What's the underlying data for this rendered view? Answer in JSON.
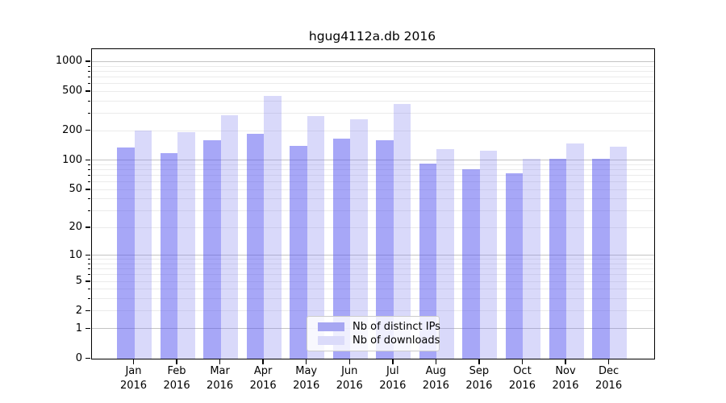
{
  "title": "hgug4112a.db 2016",
  "legend": {
    "items": [
      {
        "label": "Nb of distinct IPs",
        "color": "#a6a6f2"
      },
      {
        "label": "Nb of downloads",
        "color": "#dbdbfa"
      }
    ]
  },
  "chart_data": {
    "type": "bar",
    "title": "hgug4112a.db 2016",
    "scale": "log1p",
    "grid": true,
    "legend_position": "lower center",
    "categories": [
      "Jan",
      "Feb",
      "Mar",
      "Apr",
      "May",
      "Jun",
      "Jul",
      "Aug",
      "Sep",
      "Oct",
      "Nov",
      "Dec"
    ],
    "year": "2016",
    "series": [
      {
        "name": "Nb of distinct IPs",
        "color": "#a6a6f2",
        "fill": "rgba(80,80,240,0.5)",
        "values": [
          137,
          119,
          162,
          188,
          142,
          166,
          161,
          93,
          82,
          74,
          104,
          105
        ]
      },
      {
        "name": "Nb of downloads",
        "color": "#dbdbfa",
        "fill": "rgba(130,130,240,0.3)",
        "values": [
          203,
          195,
          291,
          450,
          283,
          265,
          375,
          131,
          126,
          105,
          148,
          139
        ]
      }
    ],
    "y_ticks": [
      1000,
      500,
      200,
      100,
      50,
      20,
      10,
      5,
      2,
      1,
      0
    ],
    "y_minor_ticks": [
      2,
      3,
      4,
      5,
      6,
      7,
      8,
      9,
      20,
      30,
      40,
      50,
      60,
      70,
      80,
      90,
      200,
      300,
      400,
      500,
      600,
      700,
      800,
      900
    ],
    "y_major_gridlines": [
      1,
      10,
      100,
      1000
    ],
    "ylim": [
      0,
      1350
    ],
    "xlabel": "",
    "ylabel": ""
  }
}
